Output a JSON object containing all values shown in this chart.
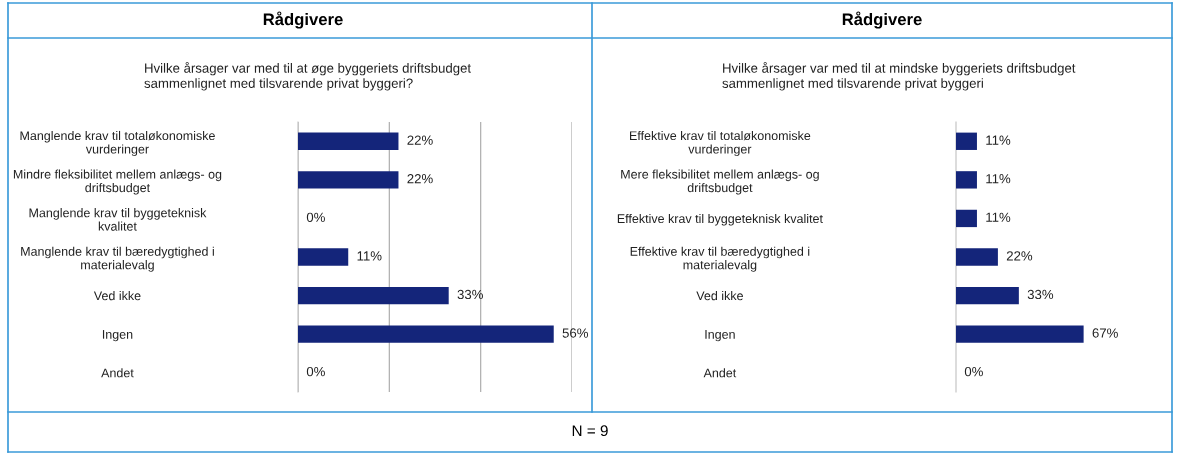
{
  "chart_data": [
    {
      "type": "bar",
      "orientation": "horizontal",
      "title": "Rådgivere",
      "subtitle": "Hvilke årsager var med til at øge byggeriets driftsbudget\nsammenlignet med tilsvarende privat byggeri?",
      "categories": [
        "Manglende krav til totaløkonomiske\nvurderinger",
        "Mindre fleksibilitet mellem anlægs- og\ndriftsbudget",
        "Manglende krav til byggeteknisk\nkvalitet",
        "Manglende krav til bæredygtighed i\nmaterialevalg",
        "Ved ikke",
        "Ingen",
        "Andet"
      ],
      "values": [
        22,
        22,
        0,
        11,
        33,
        56,
        0
      ],
      "value_labels": [
        "22%",
        "22%",
        "0%",
        "11%",
        "33%",
        "56%",
        "0%"
      ],
      "color": "#14257a",
      "xlim": [
        0,
        60
      ],
      "xticks": [
        {
          "value": 0,
          "label": null
        },
        {
          "value": 20,
          "label": null
        },
        {
          "value": 40,
          "label": null
        },
        {
          "value": 60,
          "label": null
        }
      ],
      "grid": "x",
      "tick_labels": "y",
      "annotations": [
        "N = 9"
      ]
    },
    {
      "type": "bar",
      "orientation": "horizontal",
      "title": "Rådgivere",
      "subtitle": "Hvilke årsager var med til at mindske byggeriets driftsbudget\nsammenlignet med tilsvarende privat byggeri",
      "categories": [
        "Effektive krav til totaløkonomiske\nvurderinger",
        "Mere fleksibilitet mellem anlægs- og\ndriftsbudget",
        "Effektive krav til byggeteknisk kvalitet",
        "Effektive krav til bæredygtighed i\nmaterialevalg",
        "Ved ikke",
        "Ingen",
        "Andet"
      ],
      "values": [
        11,
        11,
        11,
        22,
        33,
        67,
        0
      ],
      "value_labels": [
        "11%",
        "11%",
        "11%",
        "22%",
        "33%",
        "67%",
        "0%"
      ],
      "color": "#14257a",
      "tick_labels": "y"
    }
  ]
}
